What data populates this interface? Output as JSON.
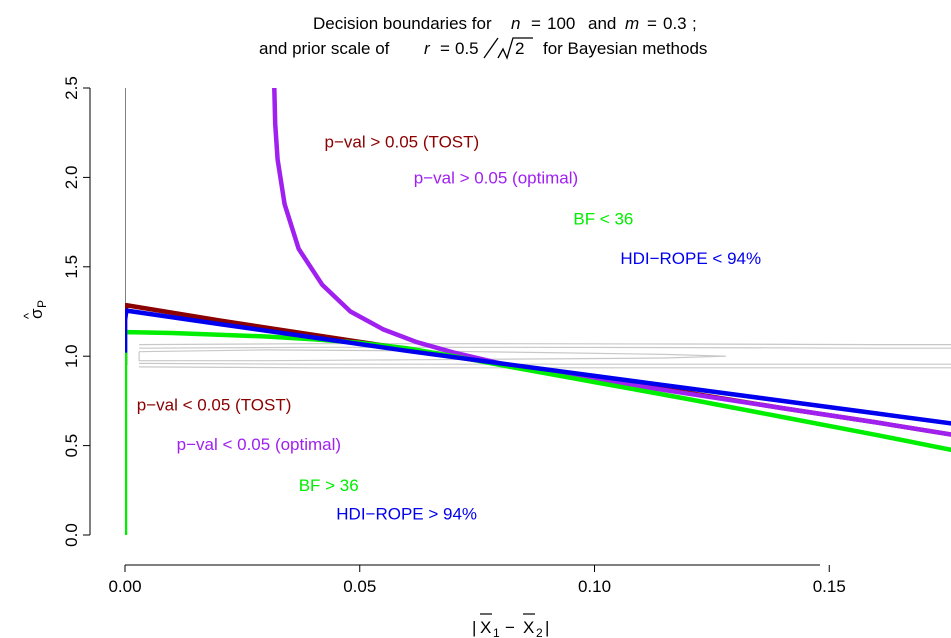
{
  "chart_data": {
    "type": "line",
    "title": {
      "line1": [
        "Decision boundaries for",
        "n",
        "=",
        "100",
        "and",
        "m",
        "=",
        "0.3",
        ";"
      ],
      "line2": [
        "and prior scale of",
        "r",
        "=",
        "0.5",
        "2",
        "for Bayesian methods"
      ]
    },
    "xlabel": {
      "bar_x": "X",
      "sub1": "1",
      "minus": "−",
      "sub2": "2"
    },
    "ylabel": {
      "hat": "^",
      "sigma": "σ",
      "sub": "P"
    },
    "xlim": [
      0.0,
      0.18
    ],
    "ylim": [
      0.0,
      2.5
    ],
    "x_ticks": [
      0.0,
      0.05,
      0.1,
      0.15
    ],
    "x_tick_labels": [
      "0.00",
      "0.05",
      "0.10",
      "0.15"
    ],
    "y_ticks": [
      0.0,
      0.5,
      1.0,
      1.5,
      2.0,
      2.5
    ],
    "y_tick_labels": [
      "0.0",
      "0.5",
      "1.0",
      "1.5",
      "2.0",
      "2.5"
    ],
    "colors": {
      "tost": "#8b0000",
      "optimal": "#a020f0",
      "bf": "#00ee00",
      "hdi": "#0000ee",
      "contour": "#c8c8c8"
    },
    "series": [
      {
        "key": "tost",
        "x": [
          0.0,
          0.0,
          0.0003,
          0.02,
          0.04,
          0.06,
          0.08,
          0.1,
          0.12,
          0.14,
          0.16,
          0.18
        ],
        "y": [
          0.95,
          1.22,
          1.285,
          1.2,
          1.12,
          1.04,
          0.955,
          0.875,
          0.795,
          0.71,
          0.63,
          0.545
        ]
      },
      {
        "key": "optimal",
        "x": [
          0.0318,
          0.032,
          0.0325,
          0.034,
          0.037,
          0.042,
          0.048,
          0.055,
          0.062,
          0.07,
          0.08,
          0.09,
          0.1,
          0.12,
          0.14,
          0.16,
          0.18
        ],
        "y": [
          2.5,
          2.3,
          2.1,
          1.85,
          1.6,
          1.4,
          1.25,
          1.15,
          1.08,
          1.02,
          0.96,
          0.91,
          0.87,
          0.79,
          0.71,
          0.63,
          0.545
        ]
      },
      {
        "key": "bf",
        "x": [
          0.0,
          0.0,
          0.0005,
          0.01,
          0.02,
          0.03,
          0.04,
          0.05,
          0.06,
          0.07,
          0.08,
          0.1,
          0.12,
          0.14,
          0.16,
          0.18
        ],
        "y": [
          0.0,
          1.13,
          1.135,
          1.13,
          1.12,
          1.11,
          1.095,
          1.075,
          1.045,
          1.0,
          0.95,
          0.855,
          0.76,
          0.66,
          0.56,
          0.455
        ]
      },
      {
        "key": "hdi",
        "x": [
          0.0,
          0.0,
          0.0003,
          0.02,
          0.04,
          0.06,
          0.08,
          0.1,
          0.12,
          0.14,
          0.16,
          0.18
        ],
        "y": [
          1.02,
          1.2,
          1.255,
          1.18,
          1.105,
          1.03,
          0.96,
          0.89,
          0.82,
          0.75,
          0.68,
          0.61
        ]
      }
    ],
    "contours": [
      {
        "x": [
          0.003,
          0.03,
          0.06,
          0.09,
          0.115,
          0.128,
          0.115,
          0.09,
          0.06,
          0.03,
          0.003,
          0.003
        ],
        "y": [
          1.025,
          1.035,
          1.03,
          1.02,
          1.01,
          1.0,
          0.99,
          0.985,
          0.98,
          0.975,
          0.975,
          1.025
        ]
      },
      {
        "x": [
          0.003,
          0.04,
          0.08,
          0.12,
          0.16,
          0.18
        ],
        "y": [
          1.045,
          1.05,
          1.05,
          1.048,
          1.045,
          1.045
        ]
      },
      {
        "x": [
          0.003,
          0.04,
          0.08,
          0.12,
          0.16,
          0.18
        ],
        "y": [
          0.96,
          0.955,
          0.955,
          0.955,
          0.955,
          0.955
        ]
      },
      {
        "x": [
          0.003,
          0.04,
          0.08,
          0.12,
          0.16,
          0.18
        ],
        "y": [
          1.065,
          1.07,
          1.07,
          1.068,
          1.065,
          1.065
        ]
      },
      {
        "x": [
          0.003,
          0.04,
          0.08,
          0.12,
          0.16,
          0.18
        ],
        "y": [
          0.94,
          0.935,
          0.935,
          0.935,
          0.935,
          0.935
        ]
      }
    ],
    "annotations": [
      {
        "text": "p−val > 0.05 (TOST)",
        "color_key": "tost",
        "x": 0.0425,
        "y": 2.2
      },
      {
        "text": "p−val > 0.05 (optimal)",
        "color_key": "optimal",
        "x": 0.0615,
        "y": 2.0
      },
      {
        "text": "BF < 36",
        "color_key": "bf",
        "x": 0.0955,
        "y": 1.77
      },
      {
        "text": "HDI−ROPE < 94%",
        "color_key": "hdi",
        "x": 0.1055,
        "y": 1.55
      },
      {
        "text": "p−val < 0.05 (TOST)",
        "color_key": "tost",
        "x": 0.0025,
        "y": 0.73
      },
      {
        "text": "p−val < 0.05 (optimal)",
        "color_key": "optimal",
        "x": 0.011,
        "y": 0.51
      },
      {
        "text": "BF > 36",
        "color_key": "bf",
        "x": 0.037,
        "y": 0.28
      },
      {
        "text": "HDI−ROPE > 94%",
        "color_key": "hdi",
        "x": 0.045,
        "y": 0.12
      }
    ]
  }
}
